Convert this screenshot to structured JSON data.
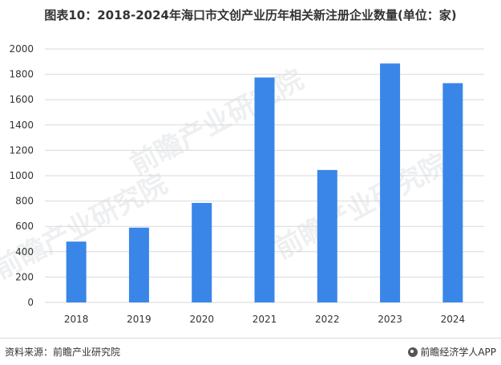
{
  "header": {
    "title": "图表10：2018-2024年海口市文创产业历年相关新注册企业数量(单位：家)"
  },
  "watermarks": [
    "前瞻产业研究院",
    "前瞻产业研究院",
    "前瞻产业研究院"
  ],
  "footer": {
    "source": "资料来源：前瞻产业研究院",
    "brand": "前瞻经济学人APP",
    "brand_icon": "qianzhan-logo-icon"
  },
  "colors": {
    "bar": "#3a86e8",
    "grid": "#d9d9d9",
    "text": "#333333"
  },
  "chart_data": {
    "type": "bar",
    "title": "图表10：2018-2024年海口市文创产业历年相关新注册企业数量(单位：家)",
    "categories": [
      "2018",
      "2019",
      "2020",
      "2021",
      "2022",
      "2023",
      "2024"
    ],
    "values": [
      480,
      590,
      785,
      1775,
      1045,
      1885,
      1730
    ],
    "ylim": [
      0,
      2000
    ],
    "yticks": [
      0,
      200,
      400,
      600,
      800,
      1000,
      1200,
      1400,
      1600,
      1800,
      2000
    ],
    "xlabel": "",
    "ylabel": "",
    "grid": true,
    "legend": "none"
  }
}
